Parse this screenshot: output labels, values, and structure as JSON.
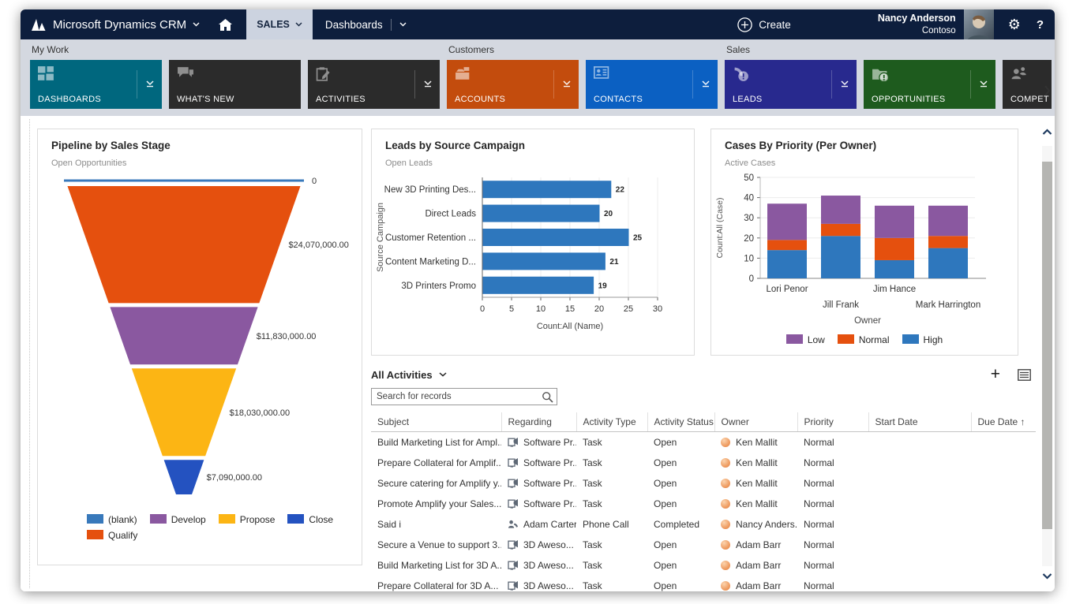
{
  "topbar": {
    "brand": "Microsoft Dynamics CRM",
    "area_tab": "SALES",
    "page_tab": "Dashboards",
    "create_label": "Create",
    "user_name": "Nancy Anderson",
    "user_org": "Contoso",
    "help_label": "?"
  },
  "nav": {
    "groups": [
      {
        "label": "My Work",
        "tiles": [
          {
            "label": "DASHBOARDS",
            "color": "#00677e",
            "icon": "dashboards-icon",
            "flyout": true
          },
          {
            "label": "WHAT'S NEW",
            "color": "#2b2b2b",
            "icon": "whats-new-icon",
            "flyout": false
          },
          {
            "label": "ACTIVITIES",
            "color": "#2b2b2b",
            "icon": "activities-icon",
            "flyout": true
          }
        ]
      },
      {
        "label": "Customers",
        "tiles": [
          {
            "label": "ACCOUNTS",
            "color": "#c34c0d",
            "icon": "accounts-icon",
            "flyout": true
          },
          {
            "label": "CONTACTS",
            "color": "#0b60c2",
            "icon": "contacts-icon",
            "flyout": true
          }
        ]
      },
      {
        "label": "Sales",
        "tiles": [
          {
            "label": "LEADS",
            "color": "#28298e",
            "icon": "leads-icon",
            "flyout": true
          },
          {
            "label": "OPPORTUNITIES",
            "color": "#1e5b1e",
            "icon": "opportunities-icon",
            "flyout": true
          },
          {
            "label": "COMPET",
            "color": "#2b2b2b",
            "icon": "competitors-icon",
            "flyout": false,
            "clipped": true
          }
        ]
      }
    ]
  },
  "chart_data": [
    {
      "type": "funnel",
      "title": "Pipeline by Sales Stage",
      "subtitle": "Open Opportunities",
      "stages": [
        {
          "name": "(blank)",
          "value": 0,
          "value_label": "0",
          "color": "#3879bb"
        },
        {
          "name": "Qualify",
          "value": 24070000,
          "value_label": "$24,070,000.00",
          "color": "#e5500e"
        },
        {
          "name": "Develop",
          "value": 11830000,
          "value_label": "$11,830,000.00",
          "color": "#8a58a0"
        },
        {
          "name": "Propose",
          "value": 18030000,
          "value_label": "$18,030,000.00",
          "color": "#fcb514"
        },
        {
          "name": "Close",
          "value": 7090000,
          "value_label": "$7,090,000.00",
          "color": "#2452c0"
        }
      ],
      "legend": [
        {
          "label": "(blank)",
          "color": "#3879bb"
        },
        {
          "label": "Develop",
          "color": "#8a58a0"
        },
        {
          "label": "Propose",
          "color": "#fcb514"
        },
        {
          "label": "Close",
          "color": "#2452c0"
        },
        {
          "label": "Qualify",
          "color": "#e5500e"
        }
      ]
    },
    {
      "type": "bar",
      "orientation": "horizontal",
      "title": "Leads by Source Campaign",
      "subtitle": "Open Leads",
      "categories": [
        "New 3D Printing Des...",
        "Direct Leads",
        "Customer Retention ...",
        "Content Marketing D...",
        "3D Printers Promo"
      ],
      "values": [
        22,
        20,
        25,
        21,
        19
      ],
      "bar_color": "#2e77bd",
      "xlabel": "Count:All (Name)",
      "ylabel": "Source Campaign",
      "xlim": [
        0,
        30
      ],
      "xticks": [
        0,
        5,
        10,
        15,
        20,
        25,
        30
      ],
      "grid": true
    },
    {
      "type": "bar",
      "stacked": true,
      "title": "Cases By Priority (Per Owner)",
      "subtitle": "Active Cases",
      "categories": [
        "Lori Penor",
        "Jill Frank",
        "Jim Hance",
        "Mark Harrington"
      ],
      "series": [
        {
          "name": "Low",
          "color": "#8a58a0",
          "values": [
            18,
            14,
            16,
            15
          ]
        },
        {
          "name": "Normal",
          "color": "#e5500e",
          "values": [
            5,
            6,
            11,
            6
          ]
        },
        {
          "name": "High",
          "color": "#2e77bd",
          "values": [
            14,
            21,
            9,
            15
          ]
        }
      ],
      "stack_order_bottom_to_top": [
        "High",
        "Normal",
        "Low"
      ],
      "xlabel": "Owner",
      "ylabel": "Count:All (Case)",
      "ylim": [
        0,
        50
      ],
      "yticks": [
        0,
        10,
        20,
        30,
        40,
        50
      ],
      "legend": [
        {
          "label": "Low",
          "color": "#8a58a0"
        },
        {
          "label": "Normal",
          "color": "#e5500e"
        },
        {
          "label": "High",
          "color": "#2e77bd"
        }
      ],
      "grid": true
    }
  ],
  "activities": {
    "title": "All Activities",
    "search_placeholder": "Search for records",
    "sort_arrow": "↑",
    "columns": [
      {
        "label": "Subject"
      },
      {
        "label": "Regarding"
      },
      {
        "label": "Activity Type"
      },
      {
        "label": "Activity Status"
      },
      {
        "label": "Owner"
      },
      {
        "label": "Priority"
      },
      {
        "label": "Start Date"
      },
      {
        "label": "Due Date",
        "sorted": true
      }
    ],
    "rows": [
      {
        "subject": "Build Marketing List for Ampl...",
        "regarding": "Software Pr...",
        "regarding_icon": "campaign-icon",
        "type": "Task",
        "status": "Open",
        "owner": "Ken Mallit",
        "priority": "Normal",
        "start_date": "",
        "due_date": ""
      },
      {
        "subject": "Prepare Collateral for Amplif...",
        "regarding": "Software Pr...",
        "regarding_icon": "campaign-icon",
        "type": "Task",
        "status": "Open",
        "owner": "Ken Mallit",
        "priority": "Normal",
        "start_date": "",
        "due_date": ""
      },
      {
        "subject": "Secure catering for Amplify y...",
        "regarding": "Software Pr...",
        "regarding_icon": "campaign-icon",
        "type": "Task",
        "status": "Open",
        "owner": "Ken Mallit",
        "priority": "Normal",
        "start_date": "",
        "due_date": ""
      },
      {
        "subject": "Promote Amplify your Sales...",
        "regarding": "Software Pr...",
        "regarding_icon": "campaign-icon",
        "type": "Task",
        "status": "Open",
        "owner": "Ken Mallit",
        "priority": "Normal",
        "start_date": "",
        "due_date": ""
      },
      {
        "subject": "Said i",
        "regarding": "Adam Carter",
        "regarding_icon": "phonecall-icon",
        "type": "Phone Call",
        "status": "Completed",
        "owner": "Nancy Anders...",
        "priority": "Normal",
        "start_date": "",
        "due_date": ""
      },
      {
        "subject": "Secure a Venue to support 3...",
        "regarding": "3D Aweso...",
        "regarding_icon": "campaign-icon",
        "type": "Task",
        "status": "Open",
        "owner": "Adam Barr",
        "priority": "Normal",
        "start_date": "",
        "due_date": ""
      },
      {
        "subject": "Build Marketing List for 3D A...",
        "regarding": "3D Aweso...",
        "regarding_icon": "campaign-icon",
        "type": "Task",
        "status": "Open",
        "owner": "Adam Barr",
        "priority": "Normal",
        "start_date": "",
        "due_date": ""
      },
      {
        "subject": "Prepare Collateral for 3D A...",
        "regarding": "3D Aweso...",
        "regarding_icon": "campaign-icon",
        "type": "Task",
        "status": "Open",
        "owner": "Adam Barr",
        "priority": "Normal",
        "start_date": "",
        "due_date": ""
      }
    ]
  }
}
